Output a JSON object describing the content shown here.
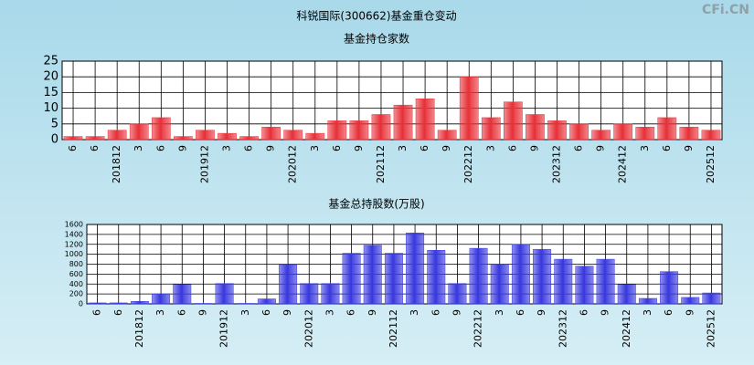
{
  "watermark": "CFi.CN",
  "chart_data": [
    {
      "type": "bar",
      "title": "科锐国际(300662)基金重仓变动",
      "subtitle": "基金持仓家数",
      "categories": [
        "6",
        "6",
        "201812",
        "3",
        "6",
        "9",
        "201912",
        "3",
        "6",
        "9",
        "202012",
        "3",
        "6",
        "9",
        "202112",
        "3",
        "6",
        "9",
        "202212",
        "3",
        "6",
        "9",
        "202312",
        "6",
        "9",
        "202412",
        "3",
        "6",
        "9",
        "202512"
      ],
      "values": [
        1,
        1,
        3,
        5,
        7,
        1,
        3,
        2,
        1,
        4,
        3,
        2,
        6,
        6,
        8,
        11,
        13,
        3,
        20,
        7,
        12,
        8,
        6,
        5,
        3,
        5,
        4,
        7,
        4,
        3
      ],
      "color": "#e8323a",
      "ylim": [
        0,
        25
      ],
      "yticks": [
        0,
        5,
        10,
        15,
        20,
        25
      ],
      "grid": true
    },
    {
      "type": "bar",
      "subtitle": "基金总持股数(万股)",
      "categories": [
        "6",
        "6",
        "201812",
        "3",
        "6",
        "9",
        "201912",
        "3",
        "6",
        "9",
        "202012",
        "3",
        "6",
        "9",
        "202112",
        "3",
        "6",
        "9",
        "202212",
        "3",
        "6",
        "9",
        "202312",
        "6",
        "9",
        "202412",
        "3",
        "6",
        "9",
        "202512"
      ],
      "values": [
        20,
        20,
        50,
        200,
        390,
        10,
        410,
        10,
        100,
        790,
        410,
        410,
        1020,
        1180,
        1020,
        1430,
        1080,
        410,
        1120,
        800,
        1200,
        1100,
        900,
        760,
        900,
        390,
        110,
        650,
        130,
        220
      ],
      "color": "#3a3ae0",
      "ylim": [
        0,
        1600
      ],
      "yticks": [
        0,
        200,
        400,
        600,
        800,
        1000,
        1200,
        1400,
        1600
      ],
      "grid": true
    }
  ]
}
